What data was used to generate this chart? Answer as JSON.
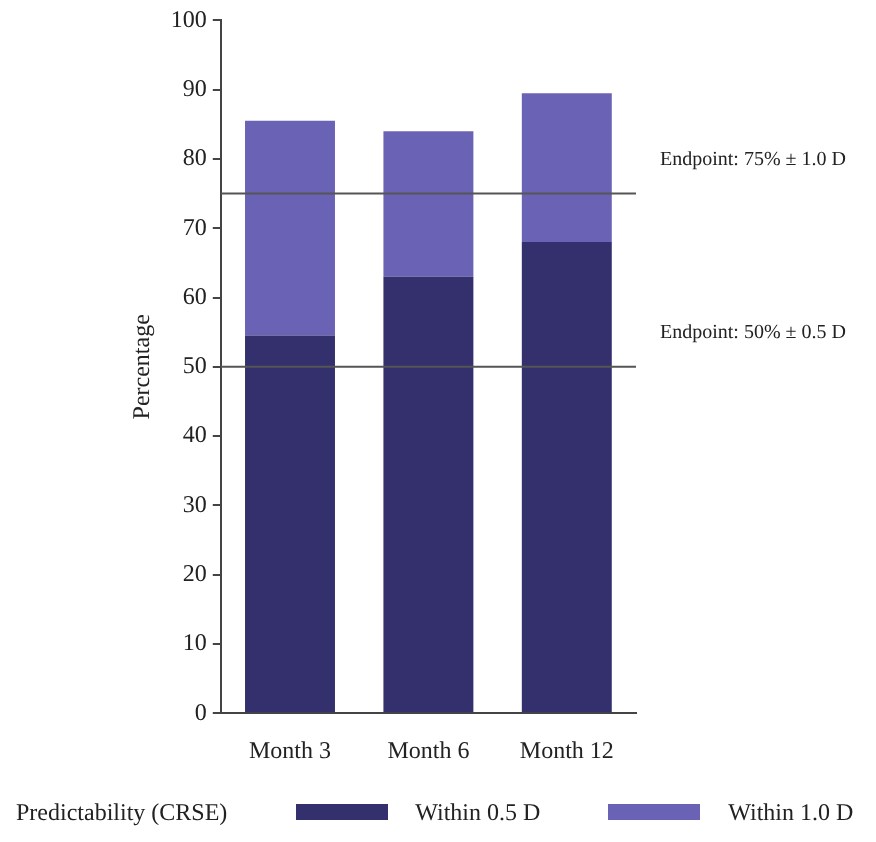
{
  "chart_data": {
    "type": "bar",
    "stacked": true,
    "ylabel": "Percentage",
    "legend_title": "Predictability (CRSE)",
    "categories": [
      "Month 3",
      "Month 6",
      "Month 12"
    ],
    "series": [
      {
        "name": "Within 0.5 D",
        "color": "#34306e",
        "values": [
          54.5,
          63,
          68
        ]
      },
      {
        "name": "Within 1.0 D",
        "color": "#6a62b4",
        "values": [
          31,
          21,
          21.5
        ]
      }
    ],
    "ylim": [
      0,
      100
    ],
    "yticks": [
      0,
      10,
      20,
      30,
      40,
      50,
      60,
      70,
      80,
      90,
      100
    ],
    "grid": false,
    "legend": "bottom",
    "ref_lines": [
      {
        "axis": "y",
        "value": 75,
        "label": "Endpoint: 75% ± 1.0 D",
        "color": "#555555"
      },
      {
        "axis": "y",
        "value": 50,
        "label": "Endpoint: 50% ± 0.5 D",
        "color": "#555555"
      }
    ]
  }
}
